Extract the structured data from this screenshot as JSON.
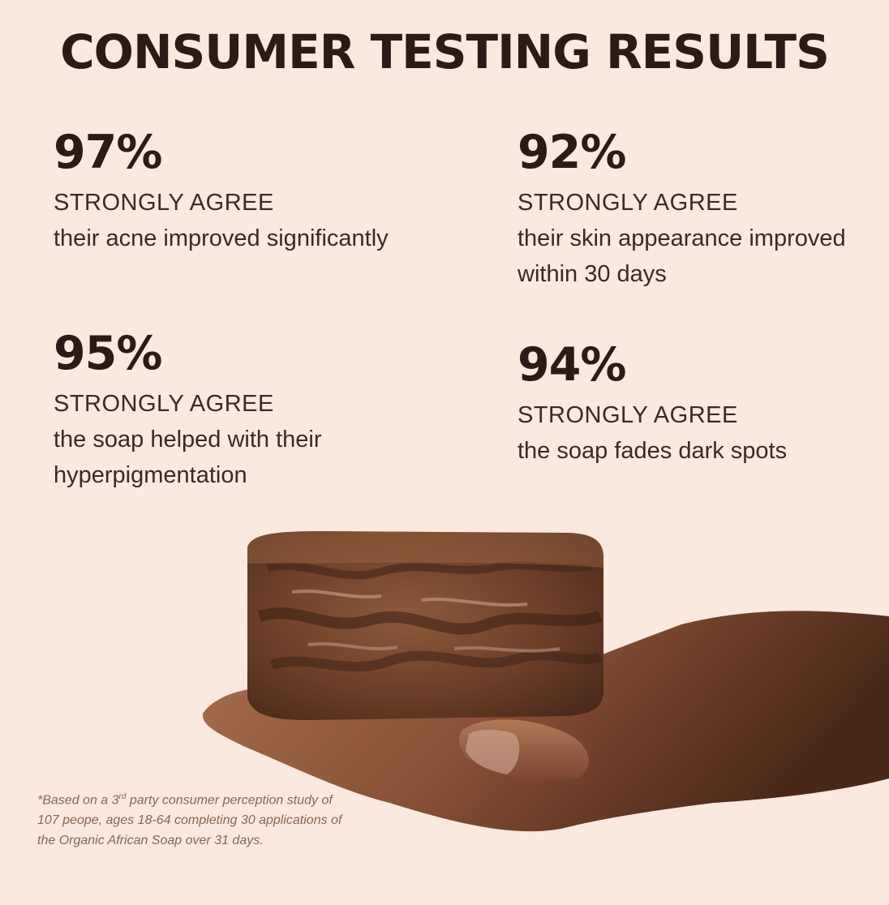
{
  "title": "CONSUMER TESTING RESULTS",
  "stats": [
    {
      "percent": "97%",
      "label": "STRONGLY AGREE",
      "description": "their acne improved significantly"
    },
    {
      "percent": "92%",
      "label": "STRONGLY AGREE",
      "description": "their skin appearance improved\nwithin 30 days"
    },
    {
      "percent": "95%",
      "label": "STRONGLY AGREE",
      "description": "the soap helped with their\nhyperpigmentation"
    },
    {
      "percent": "94%",
      "label": "STRONGLY AGREE",
      "description": "the soap fades dark spots"
    }
  ],
  "footnote": {
    "prefix": "*Based on a 3",
    "superscript": "rd",
    "text": " party consumer perception study of 107 peope, ages 18-64 completing 30 applications of the Organic African Soap over 31 days."
  },
  "colors": {
    "background": "#fbe9df",
    "text": "#2b1a16",
    "footnote": "#8a6652"
  }
}
